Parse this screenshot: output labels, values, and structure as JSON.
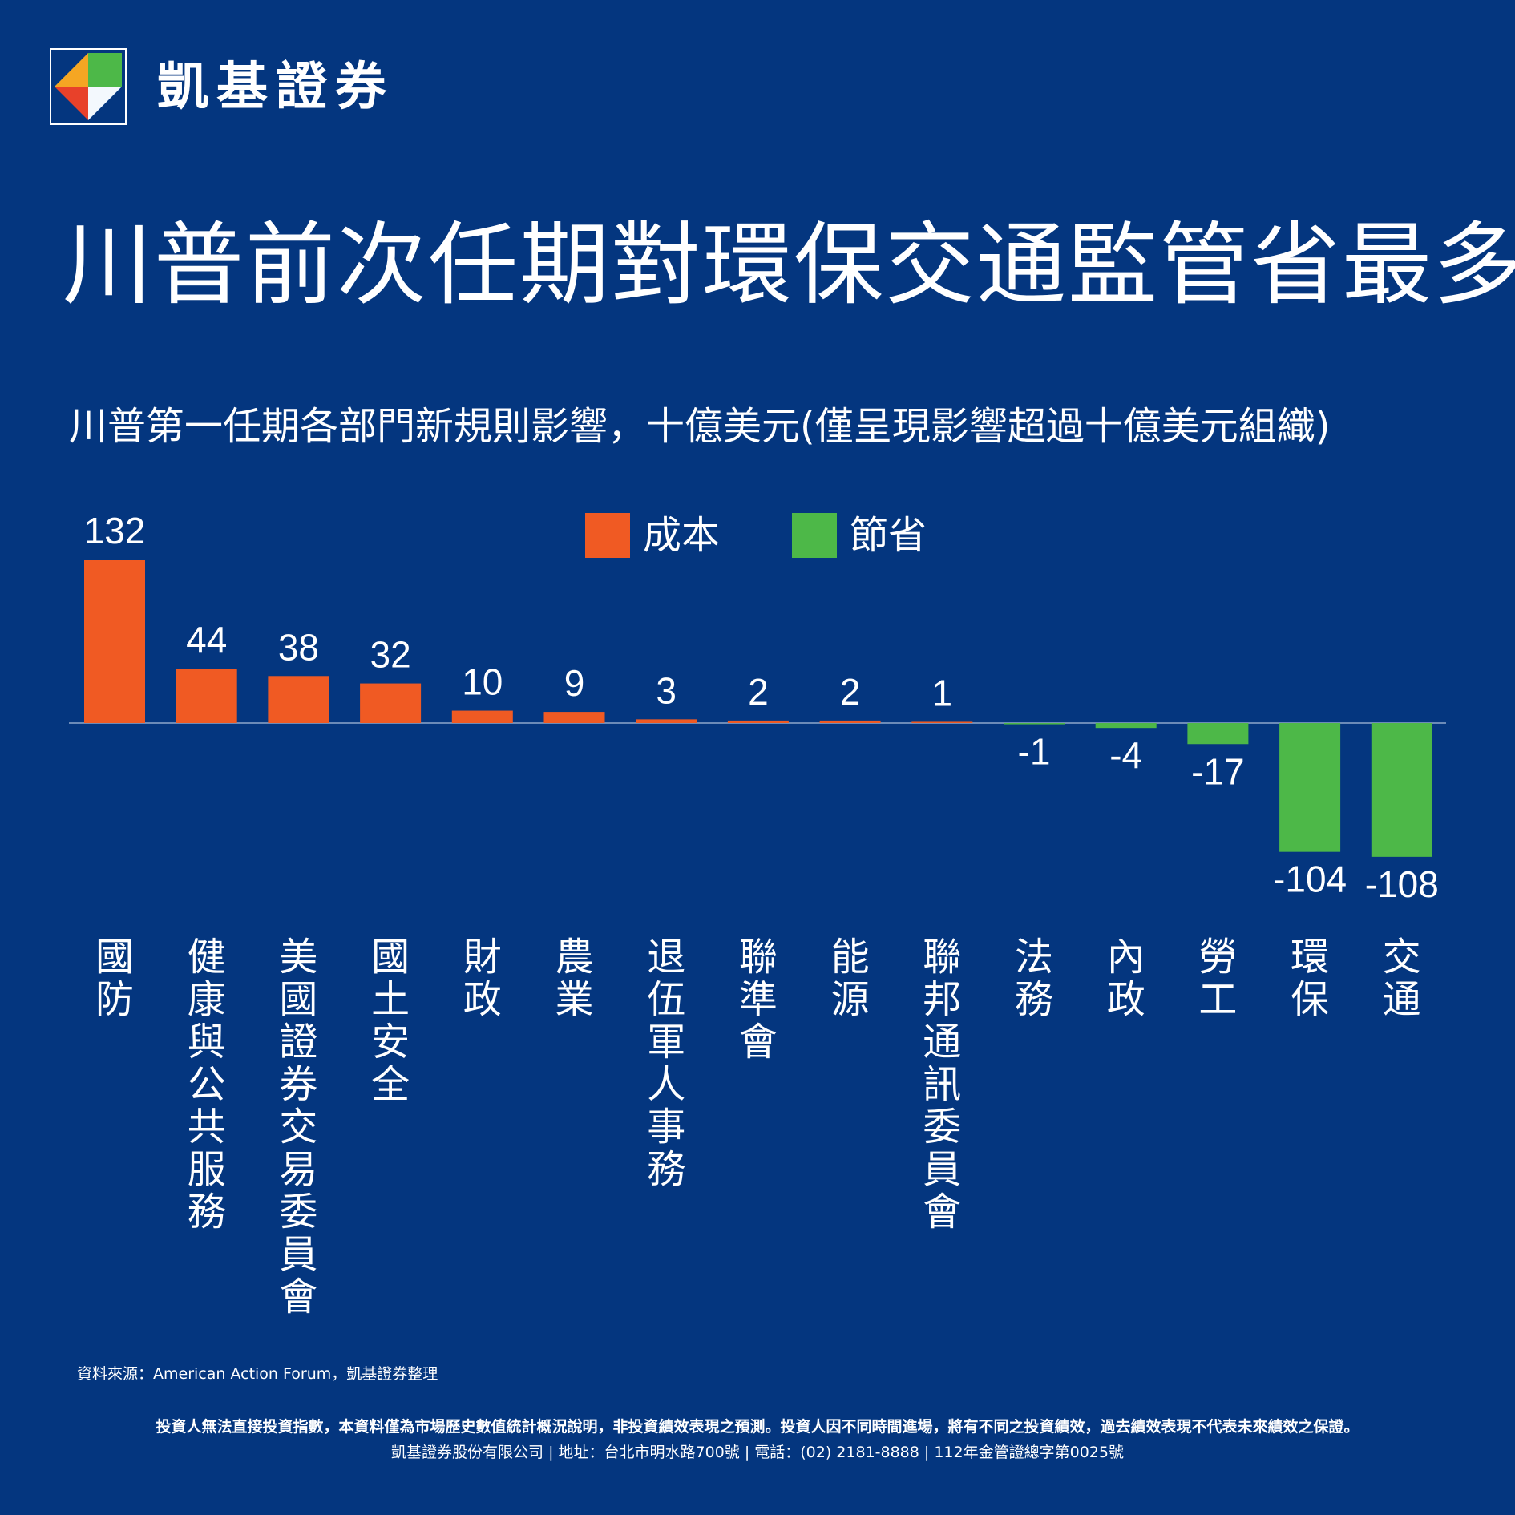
{
  "brand": {
    "name": "凱基證券",
    "colors": {
      "orange": "#f5a623",
      "red": "#e8412a",
      "green": "#4db848",
      "blue": "#1a73d9",
      "white": "#ffffff"
    }
  },
  "title": "川普前次任期對環保交通監管省最多",
  "subtitle": "川普第一任期各部門新規則影響，十億美元(僅呈現影響超過十億美元組織)",
  "legend": [
    {
      "label": "成本",
      "color": "#f05a23"
    },
    {
      "label": "節省",
      "color": "#4db848"
    }
  ],
  "chart_data": {
    "type": "bar",
    "categories": [
      "國防",
      "健康與公共服務",
      "美國證券交易委員會",
      "國土安全",
      "財政",
      "農業",
      "退伍軍人事務",
      "聯準會",
      "能源",
      "聯邦通訊委員會",
      "法務",
      "內政",
      "勞工",
      "環保",
      "交通"
    ],
    "values": [
      132,
      44,
      38,
      32,
      10,
      9,
      3,
      2,
      2,
      1,
      -1,
      -4,
      -17,
      -104,
      -108
    ],
    "title": "川普第一任期各部門新規則影響，十億美元(僅呈現影響超過十億美元組織)",
    "legend": [
      "成本",
      "節省"
    ],
    "positive_color": "#f05a23",
    "negative_color": "#4db848",
    "ylim": [
      -110,
      135
    ],
    "grid": false,
    "legend_position": "top-center"
  },
  "footer": {
    "source": "資料來源：American Action Forum，凱基證券整理",
    "disclaimer": "投資人無法直接投資指數，本資料僅為市場歷史數值統計概況說明，非投資績效表現之預測。投資人因不同時間進場，將有不同之投資績效，過去績效表現不代表未來績效之保證。",
    "company": "凱基證券股份有限公司 | 地址：台北市明水路700號 | 電話：(02) 2181-8888 | 112年金管證總字第0025號"
  }
}
